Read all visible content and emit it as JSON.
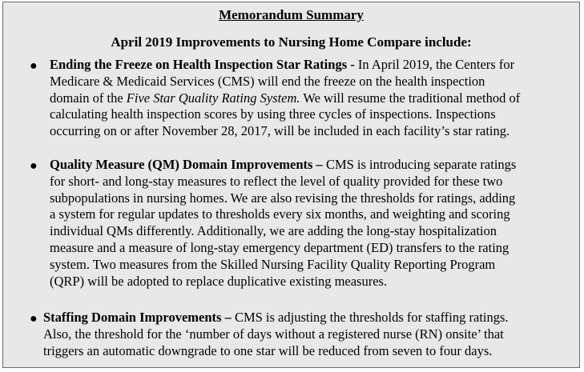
{
  "memo": {
    "title": "Memorandum Summary",
    "heading": "April 2019 Improvements to Nursing Home Compare include:",
    "bullets": [
      {
        "lead": "Ending the Freeze on Health Inspection Star Ratings -",
        "lines": [
          " In April 2019, the Centers for",
          "Medicare & Medicaid Services (CMS) will end the freeze on the health inspection",
          "domain of the ",
          " We will resume the traditional method of",
          "calculating health inspection scores by using three cycles of inspections. Inspections",
          "occurring on or after November 28, 2017, will be included in each facility’s star rating."
        ],
        "italic": "Five Star Quality Rating System."
      },
      {
        "lead": "Quality Measure (QM) Domain Improvements –",
        "lines": [
          " CMS is introducing separate ratings",
          "for short- and long-stay measures to reflect the level of quality provided for these two",
          "subpopulations in nursing homes. We are also revising the thresholds for ratings, adding",
          "a system for regular updates to thresholds every six months, and weighting and scoring",
          "individual QMs differently. Additionally, we are adding the long-stay hospitalization",
          "measure and a measure of long-stay emergency department (ED) transfers to the rating",
          "system. Two measures from the Skilled Nursing Facility Quality Reporting Program",
          "(QRP) will be adopted to replace duplicative existing measures."
        ]
      },
      {
        "lead": "Staffing Domain Improvements –",
        "lines": [
          " CMS is adjusting the thresholds for staffing ratings.",
          "Also, the threshold for the ‘number of days without a registered nurse (RN) onsite’ that",
          "triggers an automatic downgrade to one star will be reduced from seven to four days."
        ]
      }
    ]
  }
}
